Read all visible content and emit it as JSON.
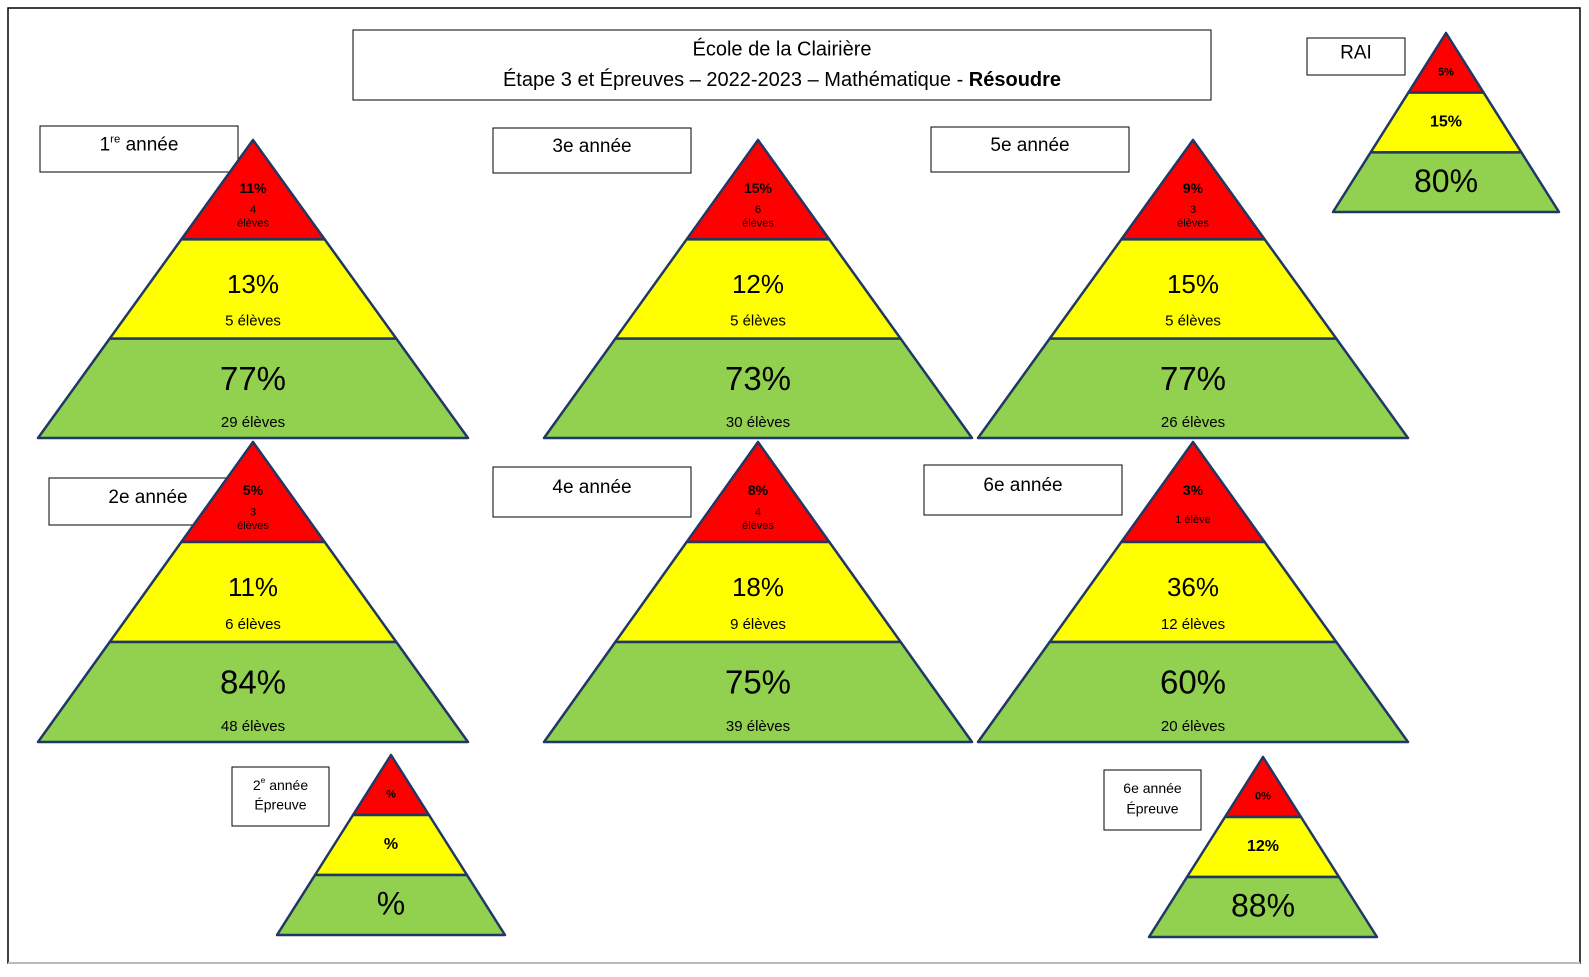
{
  "header": {
    "line1": "École de la Clairière",
    "line2": "Étape 3 et Épreuves – 2022-2023 – Mathématique - ",
    "line2_bold": "Résoudre"
  },
  "pyramids": [
    {
      "label": {
        "base": "1",
        "sup": "re",
        "rest": " année"
      },
      "tiers": [
        {
          "pct": "11%",
          "count": [
            "4",
            "élèves"
          ]
        },
        {
          "pct": "13%",
          "count": [
            "5 élèves"
          ]
        },
        {
          "pct": "77%",
          "count": [
            "29 élèves"
          ]
        }
      ]
    },
    {
      "label": "3e année",
      "tiers": [
        {
          "pct": "15%",
          "count": [
            "6",
            "élèves"
          ]
        },
        {
          "pct": "12%",
          "count": [
            "5 élèves"
          ]
        },
        {
          "pct": "73%",
          "count": [
            "30 élèves"
          ]
        }
      ]
    },
    {
      "label": "5e année",
      "tiers": [
        {
          "pct": "9%",
          "count": [
            "3",
            "élèves"
          ]
        },
        {
          "pct": "15%",
          "count": [
            "5 élèves"
          ]
        },
        {
          "pct": "77%",
          "count": [
            "26 élèves"
          ]
        }
      ]
    },
    {
      "label": "2e année",
      "tiers": [
        {
          "pct": "5%",
          "count": [
            "3",
            "élèves"
          ]
        },
        {
          "pct": "11%",
          "count": [
            "6 élèves"
          ]
        },
        {
          "pct": "84%",
          "count": [
            "48 élèves"
          ]
        }
      ]
    },
    {
      "label": "4e année",
      "tiers": [
        {
          "pct": "8%",
          "count": [
            "4",
            "élèves"
          ]
        },
        {
          "pct": "18%",
          "count": [
            "9 élèves"
          ]
        },
        {
          "pct": "75%",
          "count": [
            "39 élèves"
          ]
        }
      ]
    },
    {
      "label": "6e année",
      "tiers": [
        {
          "pct": "3%",
          "count": [
            "1 élève"
          ]
        },
        {
          "pct": "36%",
          "count": [
            "12 élèves"
          ]
        },
        {
          "pct": "60%",
          "count": [
            "20 élèves"
          ]
        }
      ]
    },
    {
      "label": "RAI",
      "tiers": [
        {
          "pct": "5%"
        },
        {
          "pct": "15%"
        },
        {
          "pct": "80%"
        }
      ]
    },
    {
      "label": {
        "base": "2",
        "sup": "e",
        "rest": " année"
      },
      "sublabel": "Épreuve",
      "tiers": [
        {
          "pct": "%"
        },
        {
          "pct": "%"
        },
        {
          "pct": "%"
        }
      ]
    },
    {
      "label": "6e année",
      "sublabel": "Épreuve",
      "tiers": [
        {
          "pct": "0%"
        },
        {
          "pct": "12%"
        },
        {
          "pct": "88%"
        }
      ]
    }
  ]
}
